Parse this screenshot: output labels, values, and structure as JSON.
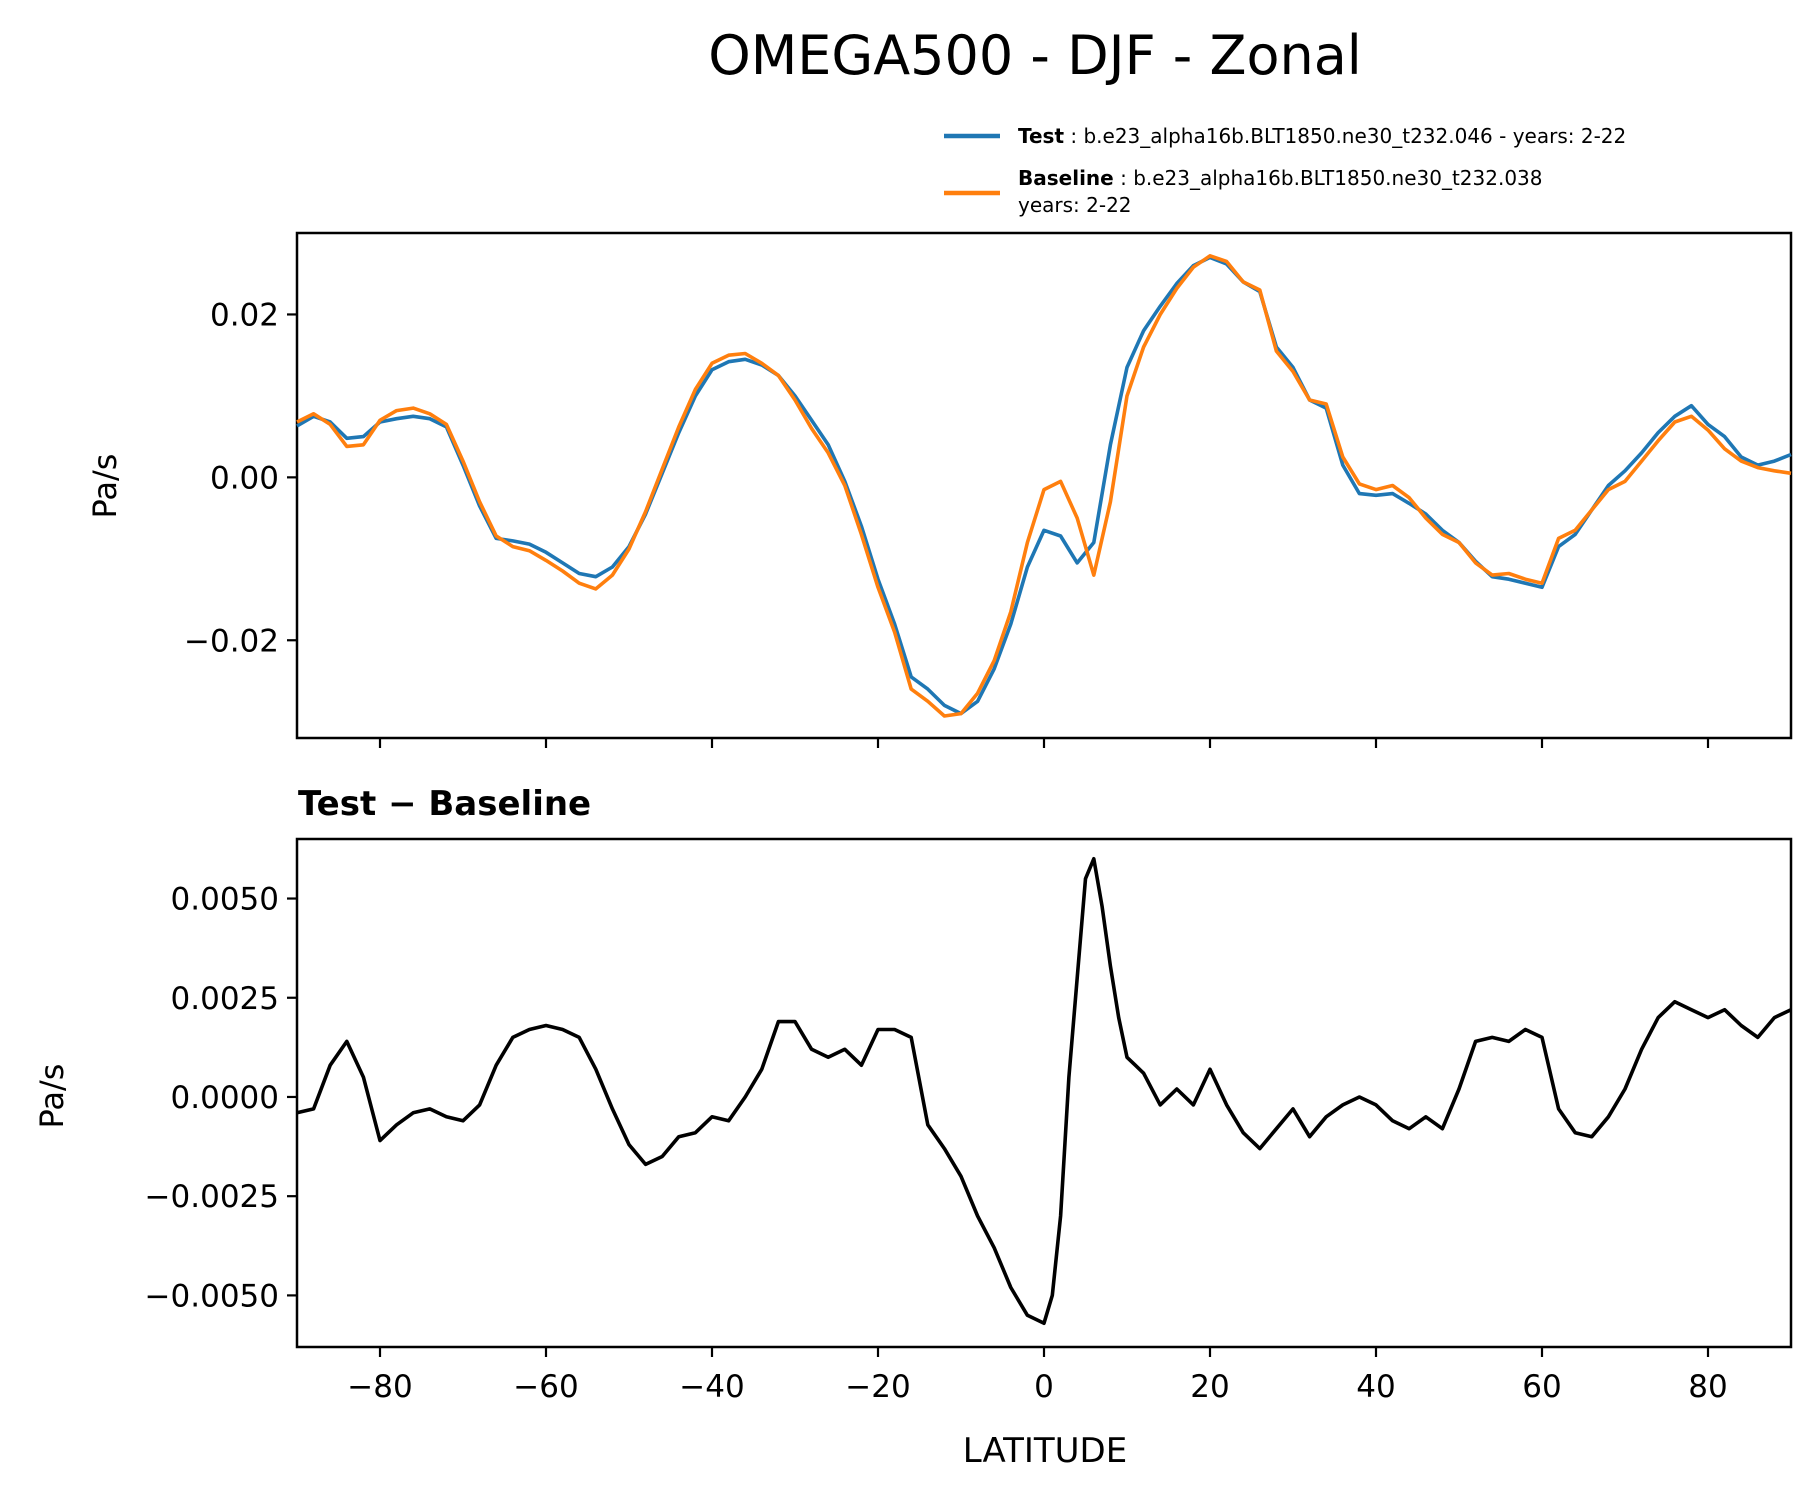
{
  "title": "OMEGA500 - DJF - Zonal",
  "legend": {
    "test_label": "Test",
    "test_text": ": b.e23_alpha16b.BLT1850.ne30_t232.046 - years: 2-22",
    "baseline_label": "Baseline",
    "baseline_text_line1": ": b.e23_alpha16b.BLT1850.ne30_t232.038",
    "baseline_text_line2": "years: 2-22"
  },
  "colors": {
    "test": "#1f77b4",
    "baseline": "#ff7f0e",
    "diff": "#000000"
  },
  "chart_data": [
    {
      "type": "line",
      "panel": "top",
      "title": "",
      "xlabel": "",
      "ylabel": "Pa/s",
      "xlim": [
        -90,
        90
      ],
      "ylim": [
        -0.032,
        0.03
      ],
      "yticks": [
        -0.02,
        0.0,
        0.02
      ],
      "ytick_labels": [
        "−0.02",
        "0.00",
        "0.02"
      ],
      "xticks": [
        -80,
        -60,
        -40,
        -20,
        0,
        20,
        40,
        60,
        80
      ],
      "legend_position": "above-top-right",
      "series": [
        {
          "name": "Test",
          "color": "#1f77b4",
          "x": [
            -90,
            -88,
            -86,
            -84,
            -82,
            -80,
            -78,
            -76,
            -74,
            -72,
            -70,
            -68,
            -66,
            -64,
            -62,
            -60,
            -58,
            -56,
            -54,
            -52,
            -50,
            -48,
            -46,
            -44,
            -42,
            -40,
            -38,
            -36,
            -34,
            -32,
            -30,
            -28,
            -26,
            -24,
            -22,
            -20,
            -18,
            -16,
            -14,
            -12,
            -10,
            -8,
            -6,
            -4,
            -2,
            0,
            2,
            4,
            6,
            8,
            10,
            12,
            14,
            16,
            18,
            20,
            22,
            24,
            26,
            28,
            30,
            32,
            34,
            36,
            38,
            40,
            42,
            44,
            46,
            48,
            50,
            52,
            54,
            56,
            58,
            60,
            62,
            64,
            66,
            68,
            70,
            72,
            74,
            76,
            78,
            80,
            82,
            84,
            86,
            88,
            90
          ],
          "y": [
            0.0063,
            0.0075,
            0.0068,
            0.0048,
            0.005,
            0.0068,
            0.0072,
            0.0075,
            0.0072,
            0.0062,
            0.0015,
            -0.0035,
            -0.0075,
            -0.0078,
            -0.0082,
            -0.0092,
            -0.0105,
            -0.0118,
            -0.0122,
            -0.011,
            -0.0085,
            -0.0045,
            0.0005,
            0.0055,
            0.01,
            0.0132,
            0.0142,
            0.0145,
            0.0138,
            0.0125,
            0.01,
            0.007,
            0.004,
            -0.0005,
            -0.006,
            -0.0125,
            -0.018,
            -0.0245,
            -0.026,
            -0.028,
            -0.029,
            -0.0275,
            -0.0235,
            -0.018,
            -0.011,
            -0.0065,
            -0.0072,
            -0.0105,
            -0.008,
            0.004,
            0.0135,
            0.018,
            0.021,
            0.0238,
            0.026,
            0.027,
            0.0262,
            0.024,
            0.0228,
            0.016,
            0.0135,
            0.0095,
            0.0085,
            0.0015,
            -0.002,
            -0.0022,
            -0.002,
            -0.0032,
            -0.0045,
            -0.0065,
            -0.008,
            -0.0103,
            -0.0122,
            -0.0125,
            -0.013,
            -0.0135,
            -0.0085,
            -0.007,
            -0.004,
            -0.001,
            0.0008,
            0.003,
            0.0055,
            0.0075,
            0.0088,
            0.0065,
            0.005,
            0.0025,
            0.0015,
            0.002,
            0.0028
          ]
        },
        {
          "name": "Baseline",
          "color": "#ff7f0e",
          "x": [
            -90,
            -88,
            -86,
            -84,
            -82,
            -80,
            -78,
            -76,
            -74,
            -72,
            -70,
            -68,
            -66,
            -64,
            -62,
            -60,
            -58,
            -56,
            -54,
            -52,
            -50,
            -48,
            -46,
            -44,
            -42,
            -40,
            -38,
            -36,
            -34,
            -32,
            -30,
            -28,
            -26,
            -24,
            -22,
            -20,
            -18,
            -16,
            -14,
            -12,
            -10,
            -8,
            -6,
            -4,
            -2,
            0,
            2,
            4,
            6,
            8,
            10,
            12,
            14,
            16,
            18,
            20,
            22,
            24,
            26,
            28,
            30,
            32,
            34,
            36,
            38,
            40,
            42,
            44,
            46,
            48,
            50,
            52,
            54,
            56,
            58,
            60,
            62,
            64,
            66,
            68,
            70,
            72,
            74,
            76,
            78,
            80,
            82,
            84,
            86,
            88,
            90
          ],
          "y": [
            0.0068,
            0.0078,
            0.0065,
            0.0038,
            0.004,
            0.007,
            0.0082,
            0.0085,
            0.0078,
            0.0065,
            0.002,
            -0.003,
            -0.0072,
            -0.0085,
            -0.009,
            -0.0102,
            -0.0115,
            -0.013,
            -0.0137,
            -0.012,
            -0.0088,
            -0.0042,
            0.001,
            0.0062,
            0.0108,
            0.014,
            0.015,
            0.0152,
            0.014,
            0.0125,
            0.0095,
            0.006,
            0.003,
            -0.001,
            -0.007,
            -0.0135,
            -0.019,
            -0.026,
            -0.0275,
            -0.0293,
            -0.029,
            -0.0265,
            -0.0225,
            -0.0165,
            -0.008,
            -0.0015,
            -0.0005,
            -0.005,
            -0.012,
            -0.003,
            0.01,
            0.016,
            0.02,
            0.0232,
            0.0258,
            0.0272,
            0.0265,
            0.024,
            0.023,
            0.0155,
            0.013,
            0.0095,
            0.009,
            0.0025,
            -0.0008,
            -0.0015,
            -0.001,
            -0.0025,
            -0.005,
            -0.007,
            -0.008,
            -0.0105,
            -0.012,
            -0.0118,
            -0.0125,
            -0.013,
            -0.0075,
            -0.0065,
            -0.004,
            -0.0015,
            -0.0005,
            0.002,
            0.0045,
            0.0068,
            0.0075,
            0.0058,
            0.0035,
            0.002,
            0.0012,
            0.0008,
            0.0005
          ]
        }
      ]
    },
    {
      "type": "line",
      "panel": "bottom",
      "title": "Test − Baseline",
      "xlabel": "LATITUDE",
      "ylabel": "Pa/s",
      "xlim": [
        -90,
        90
      ],
      "ylim": [
        -0.0063,
        0.0065
      ],
      "yticks": [
        -0.005,
        -0.0025,
        0.0,
        0.0025,
        0.005
      ],
      "ytick_labels": [
        "−0.0050",
        "−0.0025",
        "0.0000",
        "0.0025",
        "0.0050"
      ],
      "xticks": [
        -80,
        -60,
        -40,
        -20,
        0,
        20,
        40,
        60,
        80
      ],
      "xtick_labels": [
        "−80",
        "−60",
        "−40",
        "−20",
        "0",
        "20",
        "40",
        "60",
        "80"
      ],
      "series": [
        {
          "name": "Test − Baseline",
          "color": "#000000",
          "x": [
            -90,
            -88,
            -86,
            -84,
            -82,
            -80,
            -78,
            -76,
            -74,
            -72,
            -70,
            -68,
            -66,
            -64,
            -62,
            -60,
            -58,
            -56,
            -54,
            -52,
            -50,
            -48,
            -46,
            -44,
            -42,
            -40,
            -38,
            -36,
            -34,
            -32,
            -30,
            -28,
            -26,
            -24,
            -22,
            -20,
            -18,
            -16,
            -14,
            -12,
            -10,
            -8,
            -6,
            -4,
            -2,
            0,
            1,
            2,
            3,
            4,
            5,
            6,
            7,
            8,
            9,
            10,
            11,
            12,
            14,
            16,
            18,
            20,
            22,
            24,
            26,
            28,
            30,
            32,
            34,
            36,
            38,
            40,
            42,
            44,
            46,
            48,
            50,
            52,
            54,
            56,
            58,
            60,
            62,
            64,
            66,
            68,
            70,
            72,
            74,
            76,
            78,
            80,
            82,
            84,
            86,
            88,
            90
          ],
          "y": [
            -0.0004,
            -0.0003,
            0.0008,
            0.0014,
            0.0005,
            -0.0011,
            -0.0007,
            -0.0004,
            -0.0003,
            -0.0005,
            -0.0006,
            -0.0002,
            0.0008,
            0.0015,
            0.0017,
            0.0018,
            0.0017,
            0.0015,
            0.0007,
            -0.0003,
            -0.0012,
            -0.0017,
            -0.0015,
            -0.001,
            -0.0009,
            -0.0005,
            -0.0006,
            0.0,
            0.0007,
            0.0019,
            0.0019,
            0.0012,
            0.001,
            0.0012,
            0.0008,
            0.0017,
            0.0017,
            0.0015,
            -0.0007,
            -0.0013,
            -0.002,
            -0.003,
            -0.0038,
            -0.0048,
            -0.0055,
            -0.0057,
            -0.005,
            -0.003,
            0.0005,
            0.003,
            0.0055,
            0.006,
            0.0048,
            0.0033,
            0.002,
            0.001,
            0.0008,
            0.0006,
            -0.0002,
            0.0002,
            -0.0002,
            0.0007,
            -0.0002,
            -0.0009,
            -0.0013,
            -0.0008,
            -0.0003,
            -0.001,
            -0.0005,
            -0.0002,
            0.0,
            -0.0002,
            -0.0006,
            -0.0008,
            -0.0005,
            -0.0008,
            0.0002,
            0.0014,
            0.0015,
            0.0014,
            0.0017,
            0.0015,
            -0.0003,
            -0.0009,
            -0.001,
            -0.0005,
            0.0002,
            0.0012,
            0.002,
            0.0024,
            0.0022,
            0.002,
            0.0022,
            0.0018,
            0.0015,
            0.002,
            0.0022
          ]
        }
      ]
    }
  ]
}
